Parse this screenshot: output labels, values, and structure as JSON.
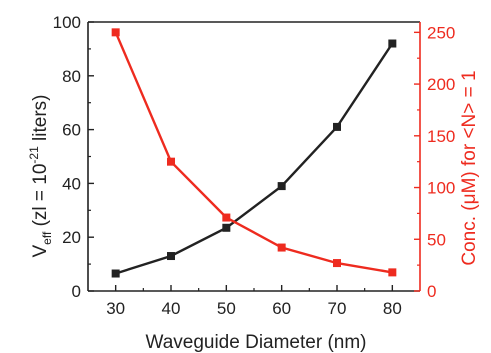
{
  "chart_data": {
    "type": "line",
    "xlabel": "Waveguide Diameter (nm)",
    "ylabel_left": {
      "prefix": "V",
      "sub": "eff",
      "middle": " (zl = 10",
      "sup": "-21",
      "suffix": " liters)"
    },
    "ylabel_right": "Conc. (μM) for <N> = 1",
    "x": [
      30,
      40,
      50,
      60,
      70,
      80
    ],
    "x_ticks": [
      "30",
      "40",
      "50",
      "60",
      "70",
      "80"
    ],
    "xlim": [
      25,
      85
    ],
    "y_left_ticks": [
      "0",
      "20",
      "40",
      "60",
      "80",
      "100"
    ],
    "ylim_left": [
      0,
      100
    ],
    "y_right_ticks": [
      "0",
      "50",
      "100",
      "150",
      "200",
      "250"
    ],
    "ylim_right": [
      0,
      260
    ],
    "series": [
      {
        "axis": "left",
        "color": "#222222",
        "marker": "square",
        "values": [
          6.5,
          13,
          23.5,
          39,
          61,
          92
        ]
      },
      {
        "axis": "right",
        "color": "#ee2b1f",
        "marker": "square",
        "values": [
          250,
          125,
          71,
          42,
          27,
          18
        ]
      }
    ],
    "grid": false
  }
}
